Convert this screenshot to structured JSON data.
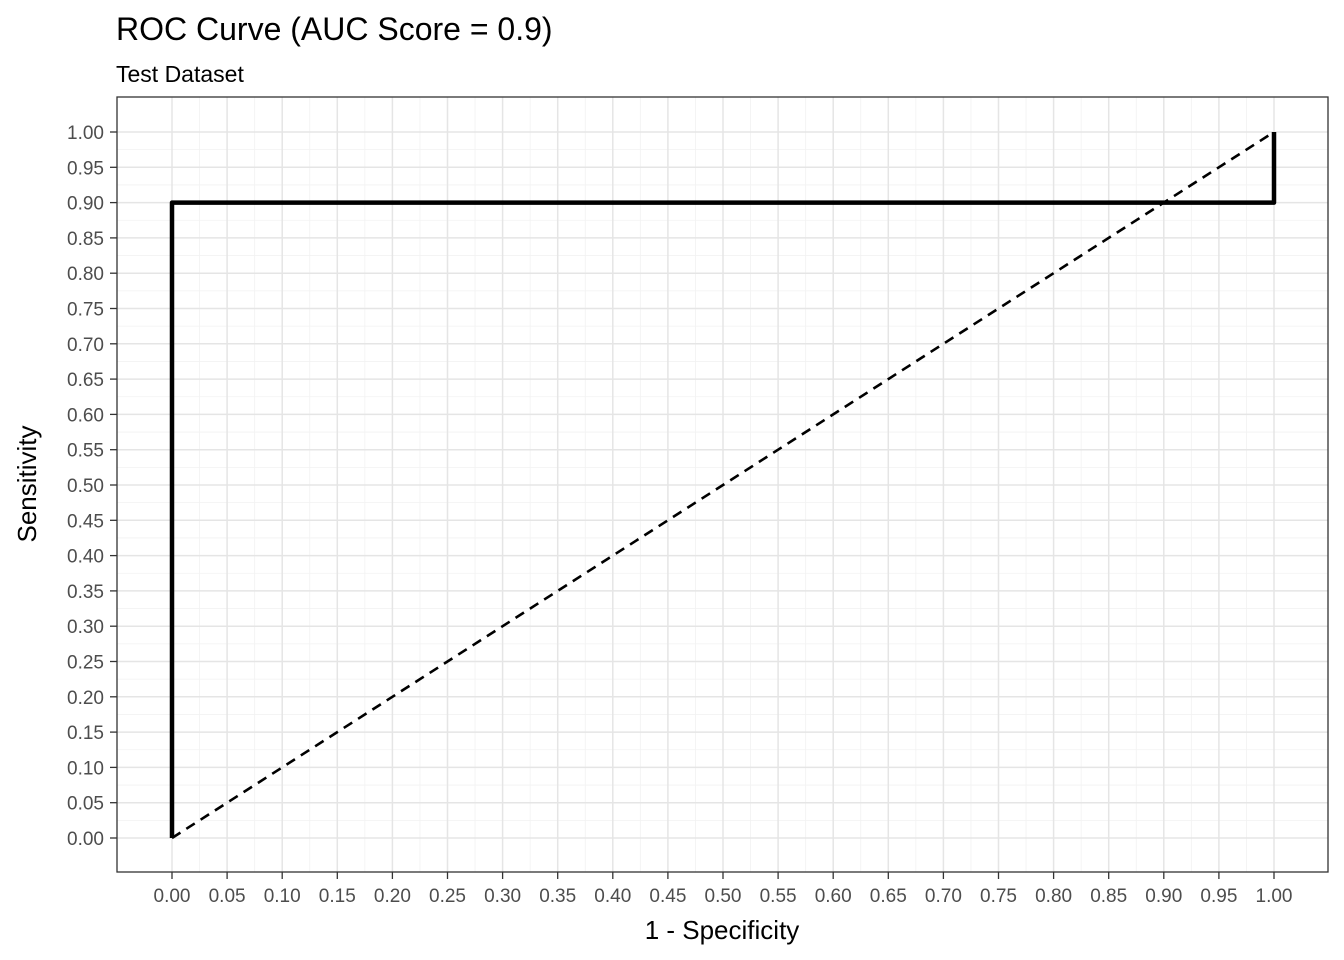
{
  "chart_data": {
    "type": "line",
    "title": "ROC Curve (AUC Score = 0.9)",
    "subtitle": "Test Dataset",
    "xlabel": "1 - Specificity",
    "ylabel": "Sensitivity",
    "xlim": [
      0,
      1
    ],
    "ylim": [
      0,
      1
    ],
    "x_ticks": [
      "0.00",
      "0.05",
      "0.10",
      "0.15",
      "0.20",
      "0.25",
      "0.30",
      "0.35",
      "0.40",
      "0.45",
      "0.50",
      "0.55",
      "0.60",
      "0.65",
      "0.70",
      "0.75",
      "0.80",
      "0.85",
      "0.90",
      "0.95",
      "1.00"
    ],
    "y_ticks": [
      "0.00",
      "0.05",
      "0.10",
      "0.15",
      "0.20",
      "0.25",
      "0.30",
      "0.35",
      "0.40",
      "0.45",
      "0.50",
      "0.55",
      "0.60",
      "0.65",
      "0.70",
      "0.75",
      "0.80",
      "0.85",
      "0.90",
      "0.95",
      "1.00"
    ],
    "grid": true,
    "series": [
      {
        "style": "solid",
        "color": "#000000",
        "x": [
          0,
          0,
          1,
          1
        ],
        "y": [
          0,
          0.9,
          0.9,
          1
        ]
      },
      {
        "style": "dashed",
        "color": "#000000",
        "x": [
          0,
          1
        ],
        "y": [
          0,
          1
        ]
      }
    ]
  }
}
